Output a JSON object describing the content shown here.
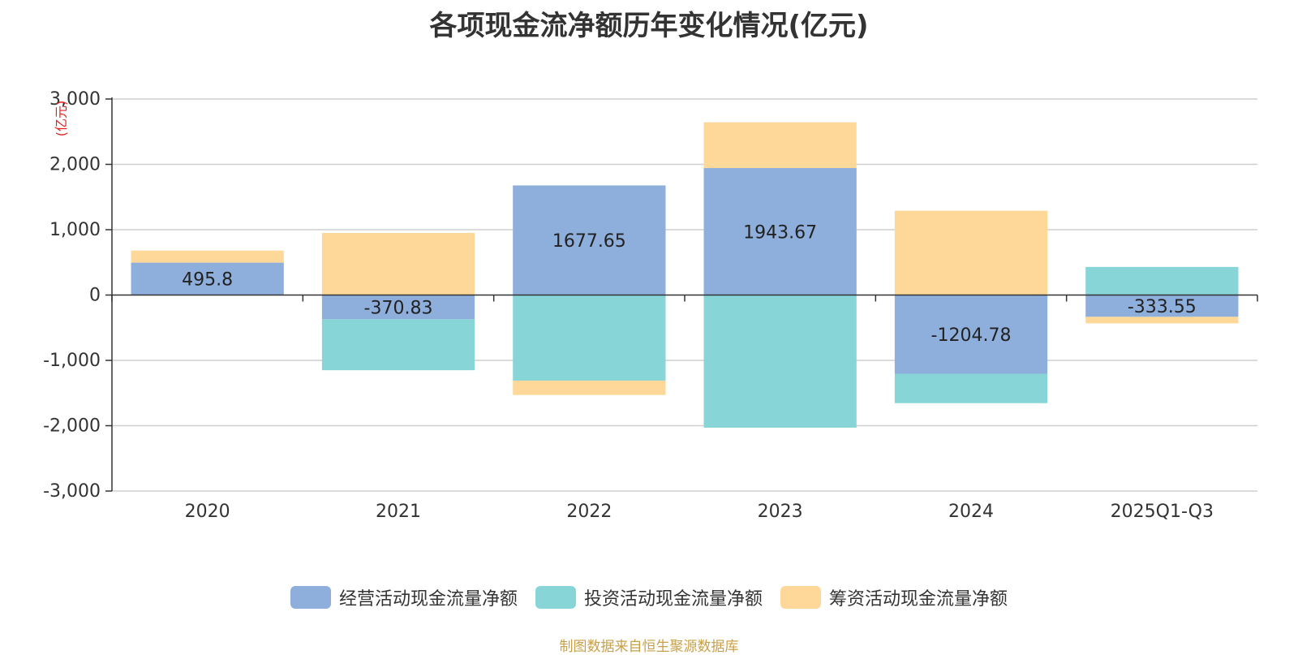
{
  "chart_data": {
    "type": "bar",
    "stacked": true,
    "title": "各项现金流净额历年变化情况(亿元)",
    "ylabel": "(亿元)",
    "xlabel": "",
    "categories": [
      "2020",
      "2021",
      "2022",
      "2023",
      "2024",
      "2025Q1-Q3"
    ],
    "ylim": [
      -3000,
      3000
    ],
    "yticks": [
      3000,
      2000,
      1000,
      0,
      -1000,
      -2000,
      -3000
    ],
    "ytick_labels": [
      "3,000",
      "2,000",
      "1,000",
      "0",
      "-1,000",
      "-2,000",
      "-3,000"
    ],
    "grid": true,
    "legend_position": "bottom",
    "series": [
      {
        "name": "经营活动现金流量净额",
        "color": "#8eaedb",
        "values": [
          495.8,
          -370.83,
          1677.65,
          1943.67,
          -1204.78,
          -333.55
        ],
        "labels": [
          "495.8",
          "-370.83",
          "1677.65",
          "1943.67",
          "-1204.78",
          "-333.55"
        ]
      },
      {
        "name": "投资活动现金流量净额",
        "color": "#88d5d8",
        "values": [
          0,
          -780,
          -1310,
          -2030,
          -450,
          430
        ]
      },
      {
        "name": "筹资活动现金流量净额",
        "color": "#fed898",
        "values": [
          185,
          950,
          -220,
          700,
          1290,
          -100
        ]
      }
    ],
    "source": "制图数据来自恒生聚源数据库"
  }
}
